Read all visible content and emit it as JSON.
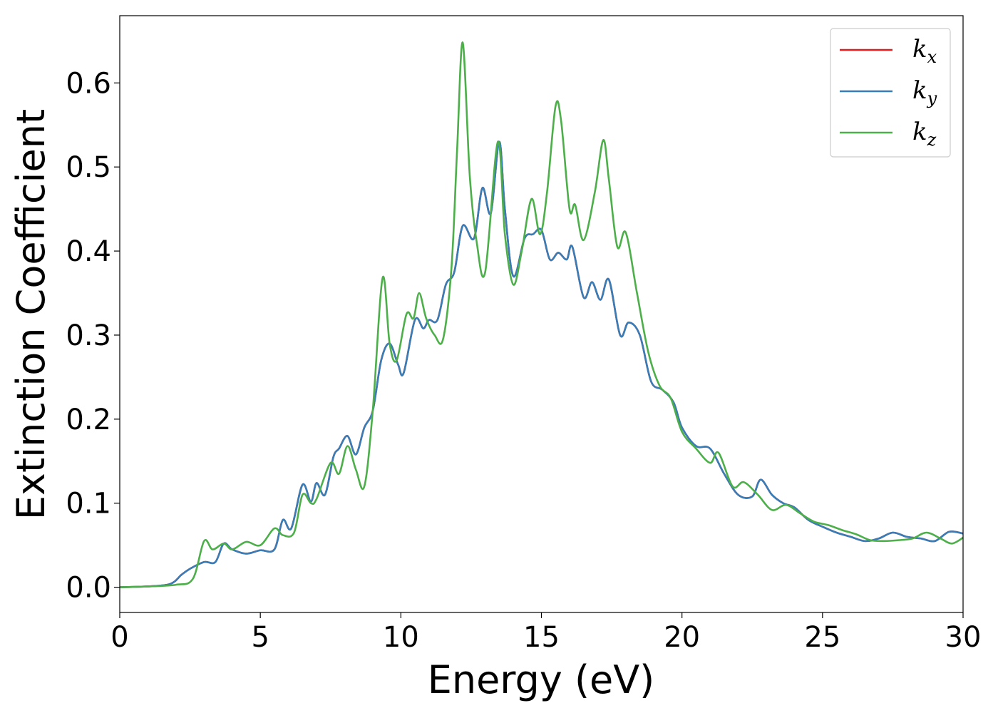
{
  "chart_data": {
    "type": "line",
    "title": "",
    "xlabel": "Energy (eV)",
    "ylabel": "Extinction Coefficient",
    "xlim": [
      0,
      30
    ],
    "ylim": [
      -0.03,
      0.68
    ],
    "xticks": [
      0,
      5,
      10,
      15,
      20,
      25,
      30
    ],
    "xtick_labels": [
      "0",
      "5",
      "10",
      "15",
      "20",
      "25",
      "30"
    ],
    "yticks": [
      0.0,
      0.1,
      0.2,
      0.3,
      0.4,
      0.5,
      0.6
    ],
    "ytick_labels": [
      "0.0",
      "0.1",
      "0.2",
      "0.3",
      "0.4",
      "0.5",
      "0.6"
    ],
    "grid": false,
    "legend": {
      "position": "top-right",
      "entries": [
        {
          "base": "k",
          "sub": "x"
        },
        {
          "base": "k",
          "sub": "y"
        },
        {
          "base": "k",
          "sub": "z"
        }
      ]
    },
    "series": [
      {
        "name": "k_x",
        "color": "#e41a1c",
        "x": [
          0,
          1,
          1.8,
          2.2,
          2.5,
          3.0,
          3.4,
          3.7,
          4.0,
          4.5,
          5.0,
          5.5,
          5.8,
          6.1,
          6.5,
          6.8,
          7.0,
          7.3,
          7.6,
          7.8,
          8.1,
          8.4,
          8.7,
          9.0,
          9.3,
          9.6,
          9.9,
          10.1,
          10.5,
          10.8,
          11.0,
          11.3,
          11.6,
          11.9,
          12.2,
          12.6,
          12.9,
          13.2,
          13.5,
          13.7,
          14.0,
          14.4,
          14.7,
          15.0,
          15.3,
          15.6,
          15.9,
          16.1,
          16.5,
          16.8,
          17.1,
          17.4,
          17.8,
          18.1,
          18.5,
          18.9,
          19.3,
          19.7,
          20.0,
          20.5,
          21.0,
          21.5,
          22.0,
          22.5,
          22.8,
          23.2,
          23.6,
          24.0,
          24.5,
          25.0,
          25.5,
          26.0,
          26.5,
          27.0,
          27.5,
          28.0,
          28.5,
          29.0,
          29.5,
          30.0
        ],
        "y": [
          0,
          0.001,
          0.004,
          0.015,
          0.022,
          0.03,
          0.03,
          0.052,
          0.045,
          0.04,
          0.044,
          0.045,
          0.08,
          0.07,
          0.122,
          0.102,
          0.124,
          0.11,
          0.155,
          0.165,
          0.18,
          0.158,
          0.19,
          0.21,
          0.27,
          0.29,
          0.265,
          0.255,
          0.318,
          0.308,
          0.318,
          0.318,
          0.36,
          0.375,
          0.43,
          0.415,
          0.475,
          0.445,
          0.53,
          0.45,
          0.37,
          0.415,
          0.42,
          0.425,
          0.39,
          0.398,
          0.39,
          0.405,
          0.345,
          0.363,
          0.342,
          0.366,
          0.3,
          0.315,
          0.3,
          0.245,
          0.235,
          0.22,
          0.19,
          0.168,
          0.165,
          0.135,
          0.11,
          0.108,
          0.128,
          0.11,
          0.1,
          0.095,
          0.08,
          0.072,
          0.065,
          0.06,
          0.055,
          0.058,
          0.065,
          0.06,
          0.058,
          0.055,
          0.066,
          0.064
        ]
      },
      {
        "name": "k_y",
        "color": "#377eb8",
        "x": [
          0,
          1,
          1.8,
          2.2,
          2.5,
          3.0,
          3.4,
          3.7,
          4.0,
          4.5,
          5.0,
          5.5,
          5.8,
          6.1,
          6.5,
          6.8,
          7.0,
          7.3,
          7.6,
          7.8,
          8.1,
          8.4,
          8.7,
          9.0,
          9.3,
          9.6,
          9.9,
          10.1,
          10.5,
          10.8,
          11.0,
          11.3,
          11.6,
          11.9,
          12.2,
          12.6,
          12.9,
          13.2,
          13.5,
          13.7,
          14.0,
          14.4,
          14.7,
          15.0,
          15.3,
          15.6,
          15.9,
          16.1,
          16.5,
          16.8,
          17.1,
          17.4,
          17.8,
          18.1,
          18.5,
          18.9,
          19.3,
          19.7,
          20.0,
          20.5,
          21.0,
          21.5,
          22.0,
          22.5,
          22.8,
          23.2,
          23.6,
          24.0,
          24.5,
          25.0,
          25.5,
          26.0,
          26.5,
          27.0,
          27.5,
          28.0,
          28.5,
          29.0,
          29.5,
          30.0
        ],
        "y": [
          0,
          0.001,
          0.004,
          0.015,
          0.022,
          0.03,
          0.03,
          0.052,
          0.045,
          0.04,
          0.044,
          0.045,
          0.08,
          0.07,
          0.122,
          0.102,
          0.124,
          0.11,
          0.155,
          0.165,
          0.18,
          0.158,
          0.19,
          0.21,
          0.27,
          0.29,
          0.265,
          0.255,
          0.318,
          0.308,
          0.318,
          0.318,
          0.36,
          0.375,
          0.43,
          0.415,
          0.475,
          0.445,
          0.53,
          0.45,
          0.37,
          0.415,
          0.42,
          0.425,
          0.39,
          0.398,
          0.39,
          0.405,
          0.345,
          0.363,
          0.342,
          0.366,
          0.3,
          0.315,
          0.3,
          0.245,
          0.235,
          0.22,
          0.19,
          0.168,
          0.165,
          0.135,
          0.11,
          0.108,
          0.128,
          0.11,
          0.1,
          0.095,
          0.08,
          0.072,
          0.065,
          0.06,
          0.055,
          0.058,
          0.065,
          0.06,
          0.058,
          0.055,
          0.066,
          0.064
        ]
      },
      {
        "name": "k_z",
        "color": "#4daf4a",
        "x": [
          0,
          1,
          2.0,
          2.6,
          3.0,
          3.3,
          3.7,
          4.0,
          4.5,
          5.0,
          5.5,
          5.8,
          6.2,
          6.5,
          6.8,
          7.0,
          7.5,
          7.8,
          8.1,
          8.4,
          8.7,
          9.0,
          9.35,
          9.6,
          9.85,
          10.2,
          10.45,
          10.65,
          10.9,
          11.2,
          11.5,
          11.8,
          12.0,
          12.2,
          12.45,
          12.7,
          13.0,
          13.45,
          13.7,
          14.0,
          14.3,
          14.65,
          14.95,
          15.2,
          15.5,
          15.7,
          16.0,
          16.2,
          16.5,
          16.9,
          17.2,
          17.4,
          17.7,
          18.0,
          18.4,
          18.8,
          19.2,
          19.6,
          20.0,
          20.5,
          21.0,
          21.3,
          21.8,
          22.2,
          22.7,
          23.2,
          23.7,
          24.2,
          24.7,
          25.2,
          25.7,
          26.2,
          26.7,
          27.2,
          27.7,
          28.2,
          28.7,
          29.2,
          29.6,
          30.0
        ],
        "y": [
          0,
          0.001,
          0.003,
          0.01,
          0.055,
          0.045,
          0.052,
          0.045,
          0.054,
          0.05,
          0.07,
          0.062,
          0.065,
          0.11,
          0.1,
          0.105,
          0.148,
          0.135,
          0.168,
          0.14,
          0.12,
          0.21,
          0.368,
          0.29,
          0.27,
          0.325,
          0.32,
          0.35,
          0.32,
          0.3,
          0.295,
          0.38,
          0.52,
          0.648,
          0.49,
          0.41,
          0.375,
          0.53,
          0.42,
          0.36,
          0.4,
          0.462,
          0.42,
          0.47,
          0.572,
          0.555,
          0.45,
          0.455,
          0.413,
          0.47,
          0.532,
          0.485,
          0.405,
          0.422,
          0.35,
          0.28,
          0.24,
          0.225,
          0.185,
          0.165,
          0.148,
          0.16,
          0.12,
          0.125,
          0.11,
          0.092,
          0.098,
          0.088,
          0.078,
          0.074,
          0.068,
          0.063,
          0.056,
          0.055,
          0.056,
          0.058,
          0.065,
          0.058,
          0.052,
          0.059
        ]
      }
    ]
  }
}
